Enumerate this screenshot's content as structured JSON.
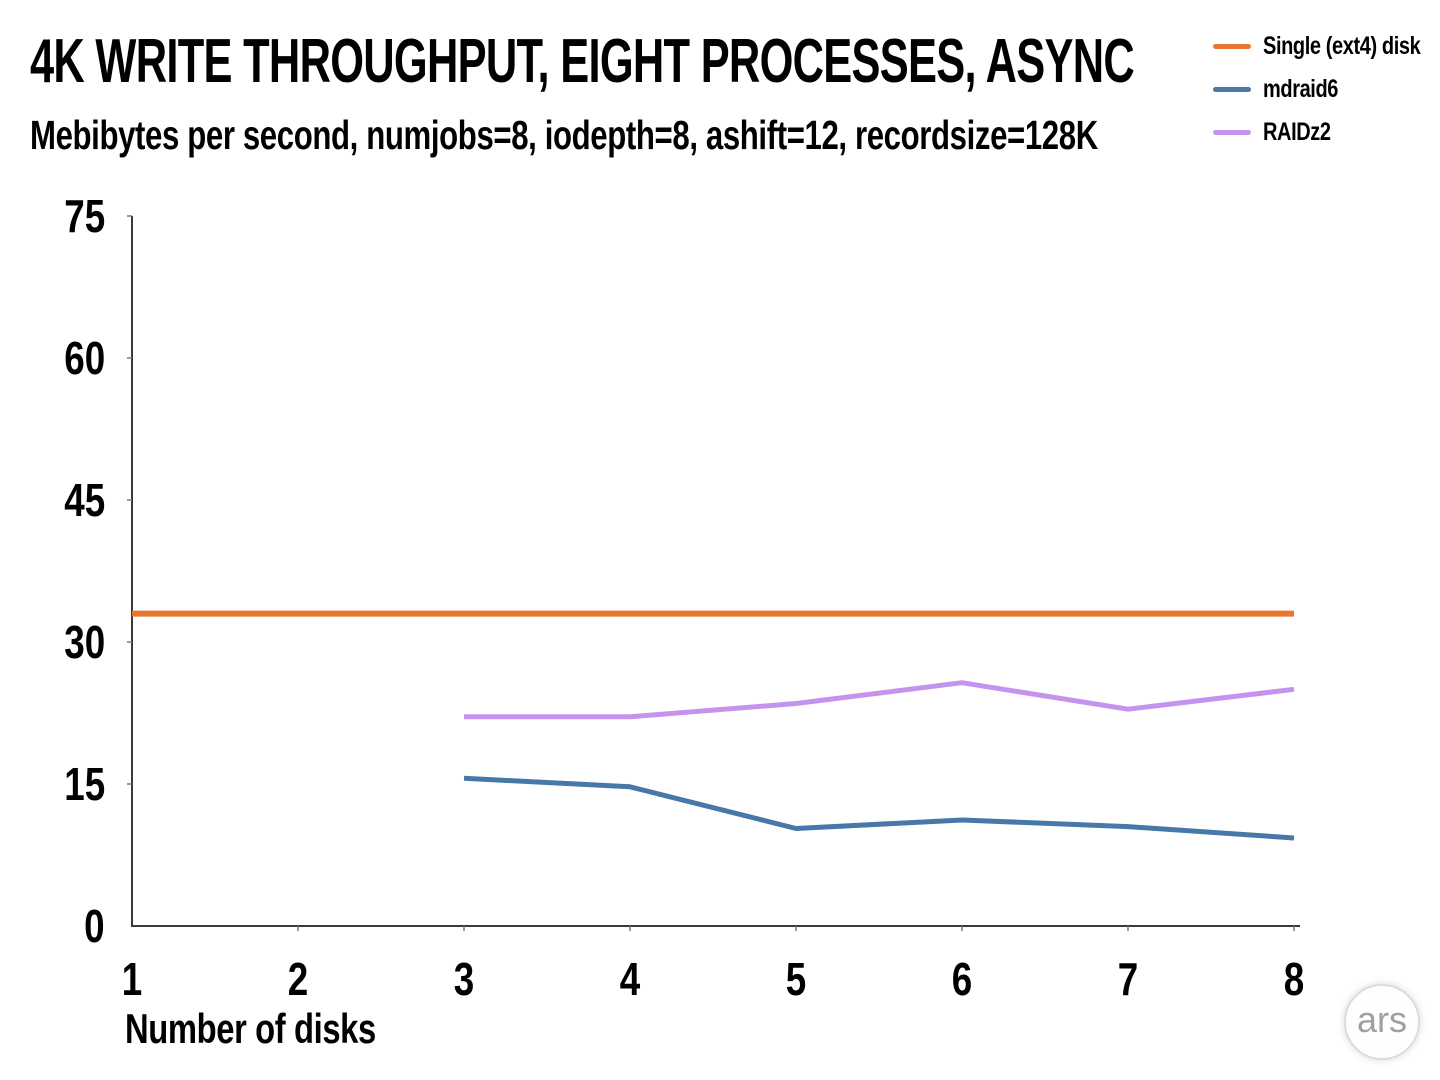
{
  "header": {
    "title": "4K WRITE THROUGHPUT, EIGHT PROCESSES, ASYNC",
    "subtitle": "Mebibytes per second, numjobs=8, iodepth=8, ashift=12, recordsize=128K"
  },
  "legend": {
    "position": "top-right",
    "entries": [
      {
        "label": "Single (ext4) disk",
        "color": "#E8762F"
      },
      {
        "label": "mdraid6",
        "color": "#4878A8"
      },
      {
        "label": "RAIDz2",
        "color": "#C493EE"
      }
    ]
  },
  "branding": {
    "logo_text": "ars"
  },
  "chart_data": {
    "type": "line",
    "title": "4K WRITE THROUGHPUT, EIGHT PROCESSES, ASYNC",
    "subtitle": "Mebibytes per second, numjobs=8, iodepth=8, ashift=12, recordsize=128K",
    "xlabel": "Number of disks",
    "ylabel": "Mebibytes per second",
    "xlim": [
      1,
      8
    ],
    "ylim": [
      0,
      75
    ],
    "x_ticks": [
      1,
      2,
      3,
      4,
      5,
      6,
      7,
      8
    ],
    "y_ticks": [
      0,
      15,
      30,
      45,
      60,
      75
    ],
    "grid": false,
    "legend_position": "top-right",
    "axis_color": "#3a3a3a",
    "series": [
      {
        "name": "Single (ext4) disk",
        "color": "#E8762F",
        "stroke_width": 6,
        "x": [
          1,
          2,
          3,
          4,
          5,
          6,
          7,
          8
        ],
        "values": [
          33,
          33,
          33,
          33,
          33,
          33,
          33,
          33
        ]
      },
      {
        "name": "mdraid6",
        "color": "#4878A8",
        "stroke_width": 5,
        "x": [
          3,
          4,
          5,
          6,
          7,
          8
        ],
        "values": [
          15.6,
          14.7,
          10.3,
          11.2,
          10.5,
          9.3
        ]
      },
      {
        "name": "RAIDz2",
        "color": "#C493EE",
        "stroke_width": 5,
        "x": [
          3,
          4,
          5,
          6,
          7,
          8
        ],
        "values": [
          22.1,
          22.1,
          23.5,
          25.7,
          22.9,
          25.0
        ]
      }
    ]
  }
}
